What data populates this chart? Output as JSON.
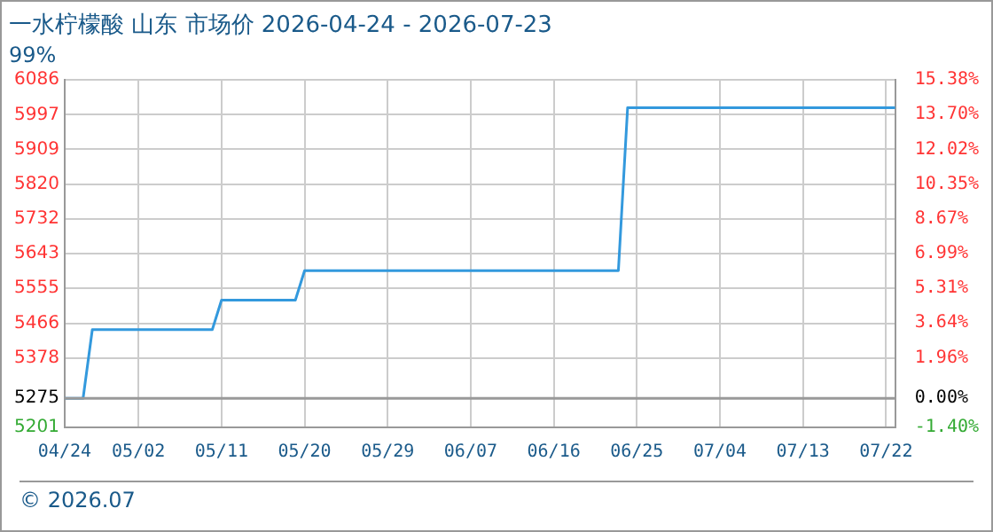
{
  "chart_data": {
    "type": "line",
    "title": "一水柠檬酸 山东 市场价 2026-04-24 - 2026-07-23",
    "subtitle": "99%",
    "annotations": [
      "© 2026.07"
    ],
    "x": [
      "2026-04-24",
      "2026-04-25",
      "2026-04-26",
      "2026-04-27",
      "2026-05-10",
      "2026-05-11",
      "2026-05-19",
      "2026-05-20",
      "2026-06-23",
      "2026-06-24",
      "2026-07-23"
    ],
    "series": [
      {
        "color": "#3399dd",
        "values": [
          5275,
          5275,
          5275,
          5450,
          5450,
          5525,
          5525,
          5600,
          5600,
          6015,
          6015
        ]
      }
    ],
    "xlim": [
      "2026-04-24",
      "2026-07-23"
    ],
    "xticks": [
      {
        "value": "2026-04-24",
        "label": "04/24"
      },
      {
        "value": "2026-05-02",
        "label": "05/02"
      },
      {
        "value": "2026-05-11",
        "label": "05/11"
      },
      {
        "value": "2026-05-20",
        "label": "05/20"
      },
      {
        "value": "2026-05-29",
        "label": "05/29"
      },
      {
        "value": "2026-06-07",
        "label": "06/07"
      },
      {
        "value": "2026-06-16",
        "label": "06/16"
      },
      {
        "value": "2026-06-25",
        "label": "06/25"
      },
      {
        "value": "2026-07-04",
        "label": "07/04"
      },
      {
        "value": "2026-07-13",
        "label": "07/13"
      },
      {
        "value": "2026-07-22",
        "label": "07/22"
      }
    ],
    "ylim": [
      5201,
      6086
    ],
    "yticks": [
      5201,
      5275,
      5378,
      5466,
      5555,
      5643,
      5732,
      5820,
      5909,
      5997,
      6086
    ],
    "y2lim": [
      -1.4,
      15.38
    ],
    "y2ticks": [
      {
        "value": -1.4,
        "label": "-1.40%"
      },
      {
        "value": 0,
        "label": "0.00%"
      },
      {
        "value": 1.96,
        "label": "1.96%"
      },
      {
        "value": 3.64,
        "label": "3.64%"
      },
      {
        "value": 5.31,
        "label": "5.31%"
      },
      {
        "value": 6.99,
        "label": "6.99%"
      },
      {
        "value": 8.67,
        "label": "8.67%"
      },
      {
        "value": 10.35,
        "label": "10.35%"
      },
      {
        "value": 12.02,
        "label": "12.02%"
      },
      {
        "value": 13.7,
        "label": "13.70%"
      },
      {
        "value": 15.38,
        "label": "15.38%"
      }
    ],
    "ref_lines": [
      {
        "axis": "y2",
        "value": 0,
        "color": "#999999"
      }
    ],
    "grid": true,
    "legend": false,
    "marker": "none",
    "line_style": "solid"
  }
}
